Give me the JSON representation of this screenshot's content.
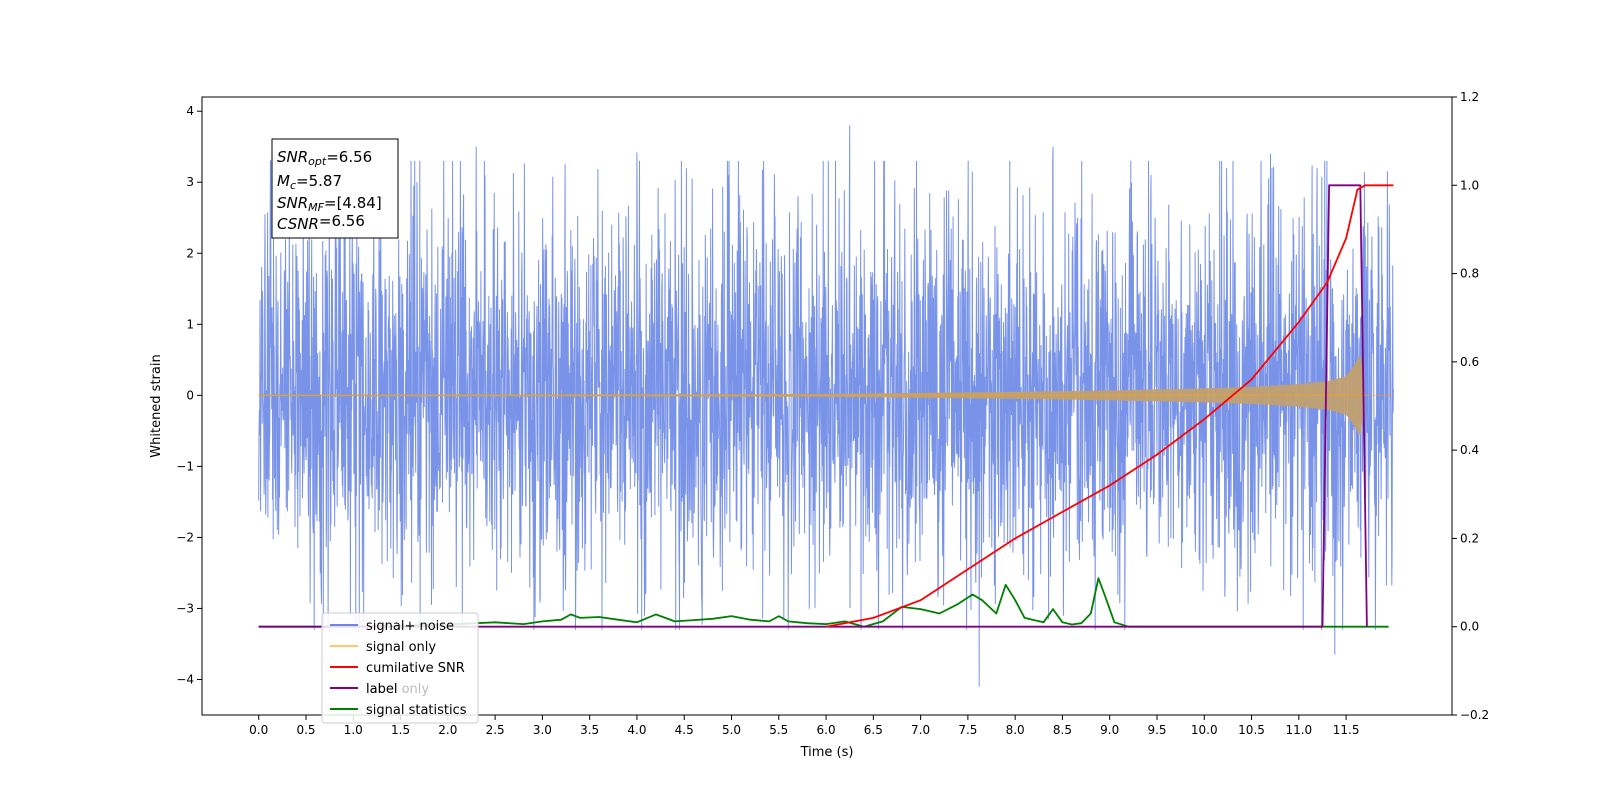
{
  "chart_data": {
    "type": "line",
    "xlabel": "Time (s)",
    "ylabel": "Whitened strain",
    "xlim": [
      -0.6,
      12.62
    ],
    "ylim": [
      -4.5,
      4.2
    ],
    "y2lim": [
      -0.2,
      1.2
    ],
    "x_ticks": [
      0.0,
      0.5,
      1.0,
      1.5,
      2.0,
      2.5,
      3.0,
      3.5,
      4.0,
      4.5,
      5.0,
      5.5,
      6.0,
      6.5,
      7.0,
      7.5,
      8.0,
      8.5,
      9.0,
      9.5,
      10.0,
      10.5,
      11.0,
      11.5
    ],
    "x_tick_labels": [
      "0.0",
      "0.5",
      "1.0",
      "1.5",
      "2.0",
      "2.5",
      "3.0",
      "3.5",
      "4.0",
      "4.5",
      "5.0",
      "5.5",
      "6.0",
      "6.5",
      "7.0",
      "7.5",
      "8.0",
      "8.5",
      "9.0",
      "9.5",
      "10.0",
      "10.5",
      "11.0",
      "11.5"
    ],
    "y_ticks": [
      -4,
      -3,
      -2,
      -1,
      0,
      1,
      2,
      3,
      4
    ],
    "y_tick_labels": [
      "−4",
      "−3",
      "−2",
      "−1",
      "0",
      "1",
      "2",
      "3",
      "4"
    ],
    "y2_ticks": [
      -0.2,
      0.0,
      0.2,
      0.4,
      0.6,
      0.8,
      1.0,
      1.2
    ],
    "y2_tick_labels": [
      "−0.2",
      "0.0",
      "0.2",
      "0.4",
      "0.6",
      "0.8",
      "1.0",
      "1.2"
    ],
    "grid": false,
    "legend_position": "lower-left",
    "annotation": {
      "lines": [
        {
          "sym": "SNR",
          "sub": "opt",
          "rest": "=6.56"
        },
        {
          "sym": "M",
          "sub": "c",
          "rest": "=5.87"
        },
        {
          "sym": "SNR",
          "sub": "MF",
          "rest": "=[4.84]"
        },
        {
          "sym": "CSNR",
          "sub": "",
          "rest": "=6.56"
        }
      ]
    },
    "series": [
      {
        "name": "signal+ noise",
        "axis": "left",
        "color": "#6a87e6",
        "envelope": {
          "t": [
            0.0,
            12.0
          ],
          "typical_amplitude": [
            1.9,
            1.9
          ],
          "peaks": [
            {
              "x": 6.25,
              "y": 3.8
            },
            {
              "x": 7.62,
              "y": -4.1
            },
            {
              "x": 11.38,
              "y": -3.65
            },
            {
              "x": 2.3,
              "y": 3.5
            },
            {
              "x": 4.0,
              "y": 3.42
            },
            {
              "x": 8.4,
              "y": 3.5
            },
            {
              "x": 1.65,
              "y": 3.3
            },
            {
              "x": 10.7,
              "y": 3.4
            },
            {
              "x": 3.35,
              "y": -3.3
            }
          ]
        }
      },
      {
        "name": "signal only",
        "axis": "left",
        "color": "#ffa500",
        "envelope": {
          "t": [
            0.0,
            4.0,
            6.0,
            8.0,
            9.0,
            10.0,
            10.5,
            11.0,
            11.3,
            11.5,
            11.6,
            11.65,
            11.7,
            12.0
          ],
          "amplitude": [
            0.01,
            0.015,
            0.02,
            0.05,
            0.07,
            0.1,
            0.12,
            0.16,
            0.2,
            0.27,
            0.45,
            0.6,
            0.0,
            0.0
          ]
        }
      },
      {
        "name": "cumilative SNR",
        "axis": "right",
        "color": "#ff0000",
        "x": [
          6.0,
          6.5,
          7.0,
          7.5,
          8.0,
          8.5,
          9.0,
          9.5,
          10.0,
          10.5,
          11.0,
          11.3,
          11.5,
          11.62,
          11.7,
          12.0
        ],
        "y": [
          0.0,
          0.02,
          0.06,
          0.13,
          0.2,
          0.26,
          0.32,
          0.39,
          0.47,
          0.56,
          0.69,
          0.78,
          0.88,
          0.99,
          1.0,
          1.0
        ]
      },
      {
        "name": "label",
        "axis": "right",
        "color": "#800080",
        "x": [
          0.0,
          11.25,
          11.32,
          11.65,
          11.72
        ],
        "y": [
          0.0,
          0.0,
          1.0,
          1.0,
          0.0
        ]
      },
      {
        "name": "label only",
        "axis": "right",
        "color": "#d8bfd8",
        "x": [
          0.0,
          11.25
        ],
        "y": [
          0.0,
          0.0
        ]
      },
      {
        "name": "signal statistics",
        "axis": "right",
        "color": "#008000",
        "x": [
          0.0,
          1.0,
          2.0,
          2.5,
          2.8,
          3.0,
          3.2,
          3.3,
          3.4,
          3.6,
          3.8,
          4.0,
          4.2,
          4.4,
          4.6,
          4.8,
          5.0,
          5.2,
          5.4,
          5.5,
          5.6,
          5.8,
          6.0,
          6.2,
          6.4,
          6.6,
          6.8,
          7.0,
          7.2,
          7.4,
          7.55,
          7.65,
          7.8,
          7.9,
          8.0,
          8.1,
          8.2,
          8.3,
          8.4,
          8.5,
          8.6,
          8.7,
          8.8,
          8.88,
          8.95,
          9.05,
          9.2,
          9.5,
          10.0,
          11.0,
          11.95
        ],
        "y": [
          0.0,
          0.0,
          0.005,
          0.01,
          0.006,
          0.012,
          0.016,
          0.028,
          0.02,
          0.022,
          0.016,
          0.01,
          0.028,
          0.012,
          0.015,
          0.018,
          0.024,
          0.016,
          0.012,
          0.024,
          0.012,
          0.008,
          0.006,
          0.012,
          0.0,
          0.012,
          0.045,
          0.04,
          0.03,
          0.052,
          0.073,
          0.06,
          0.03,
          0.095,
          0.06,
          0.02,
          0.015,
          0.01,
          0.04,
          0.01,
          0.005,
          0.008,
          0.03,
          0.11,
          0.07,
          0.01,
          0.0,
          0.0,
          0.0,
          0.0,
          0.0
        ]
      }
    ]
  }
}
